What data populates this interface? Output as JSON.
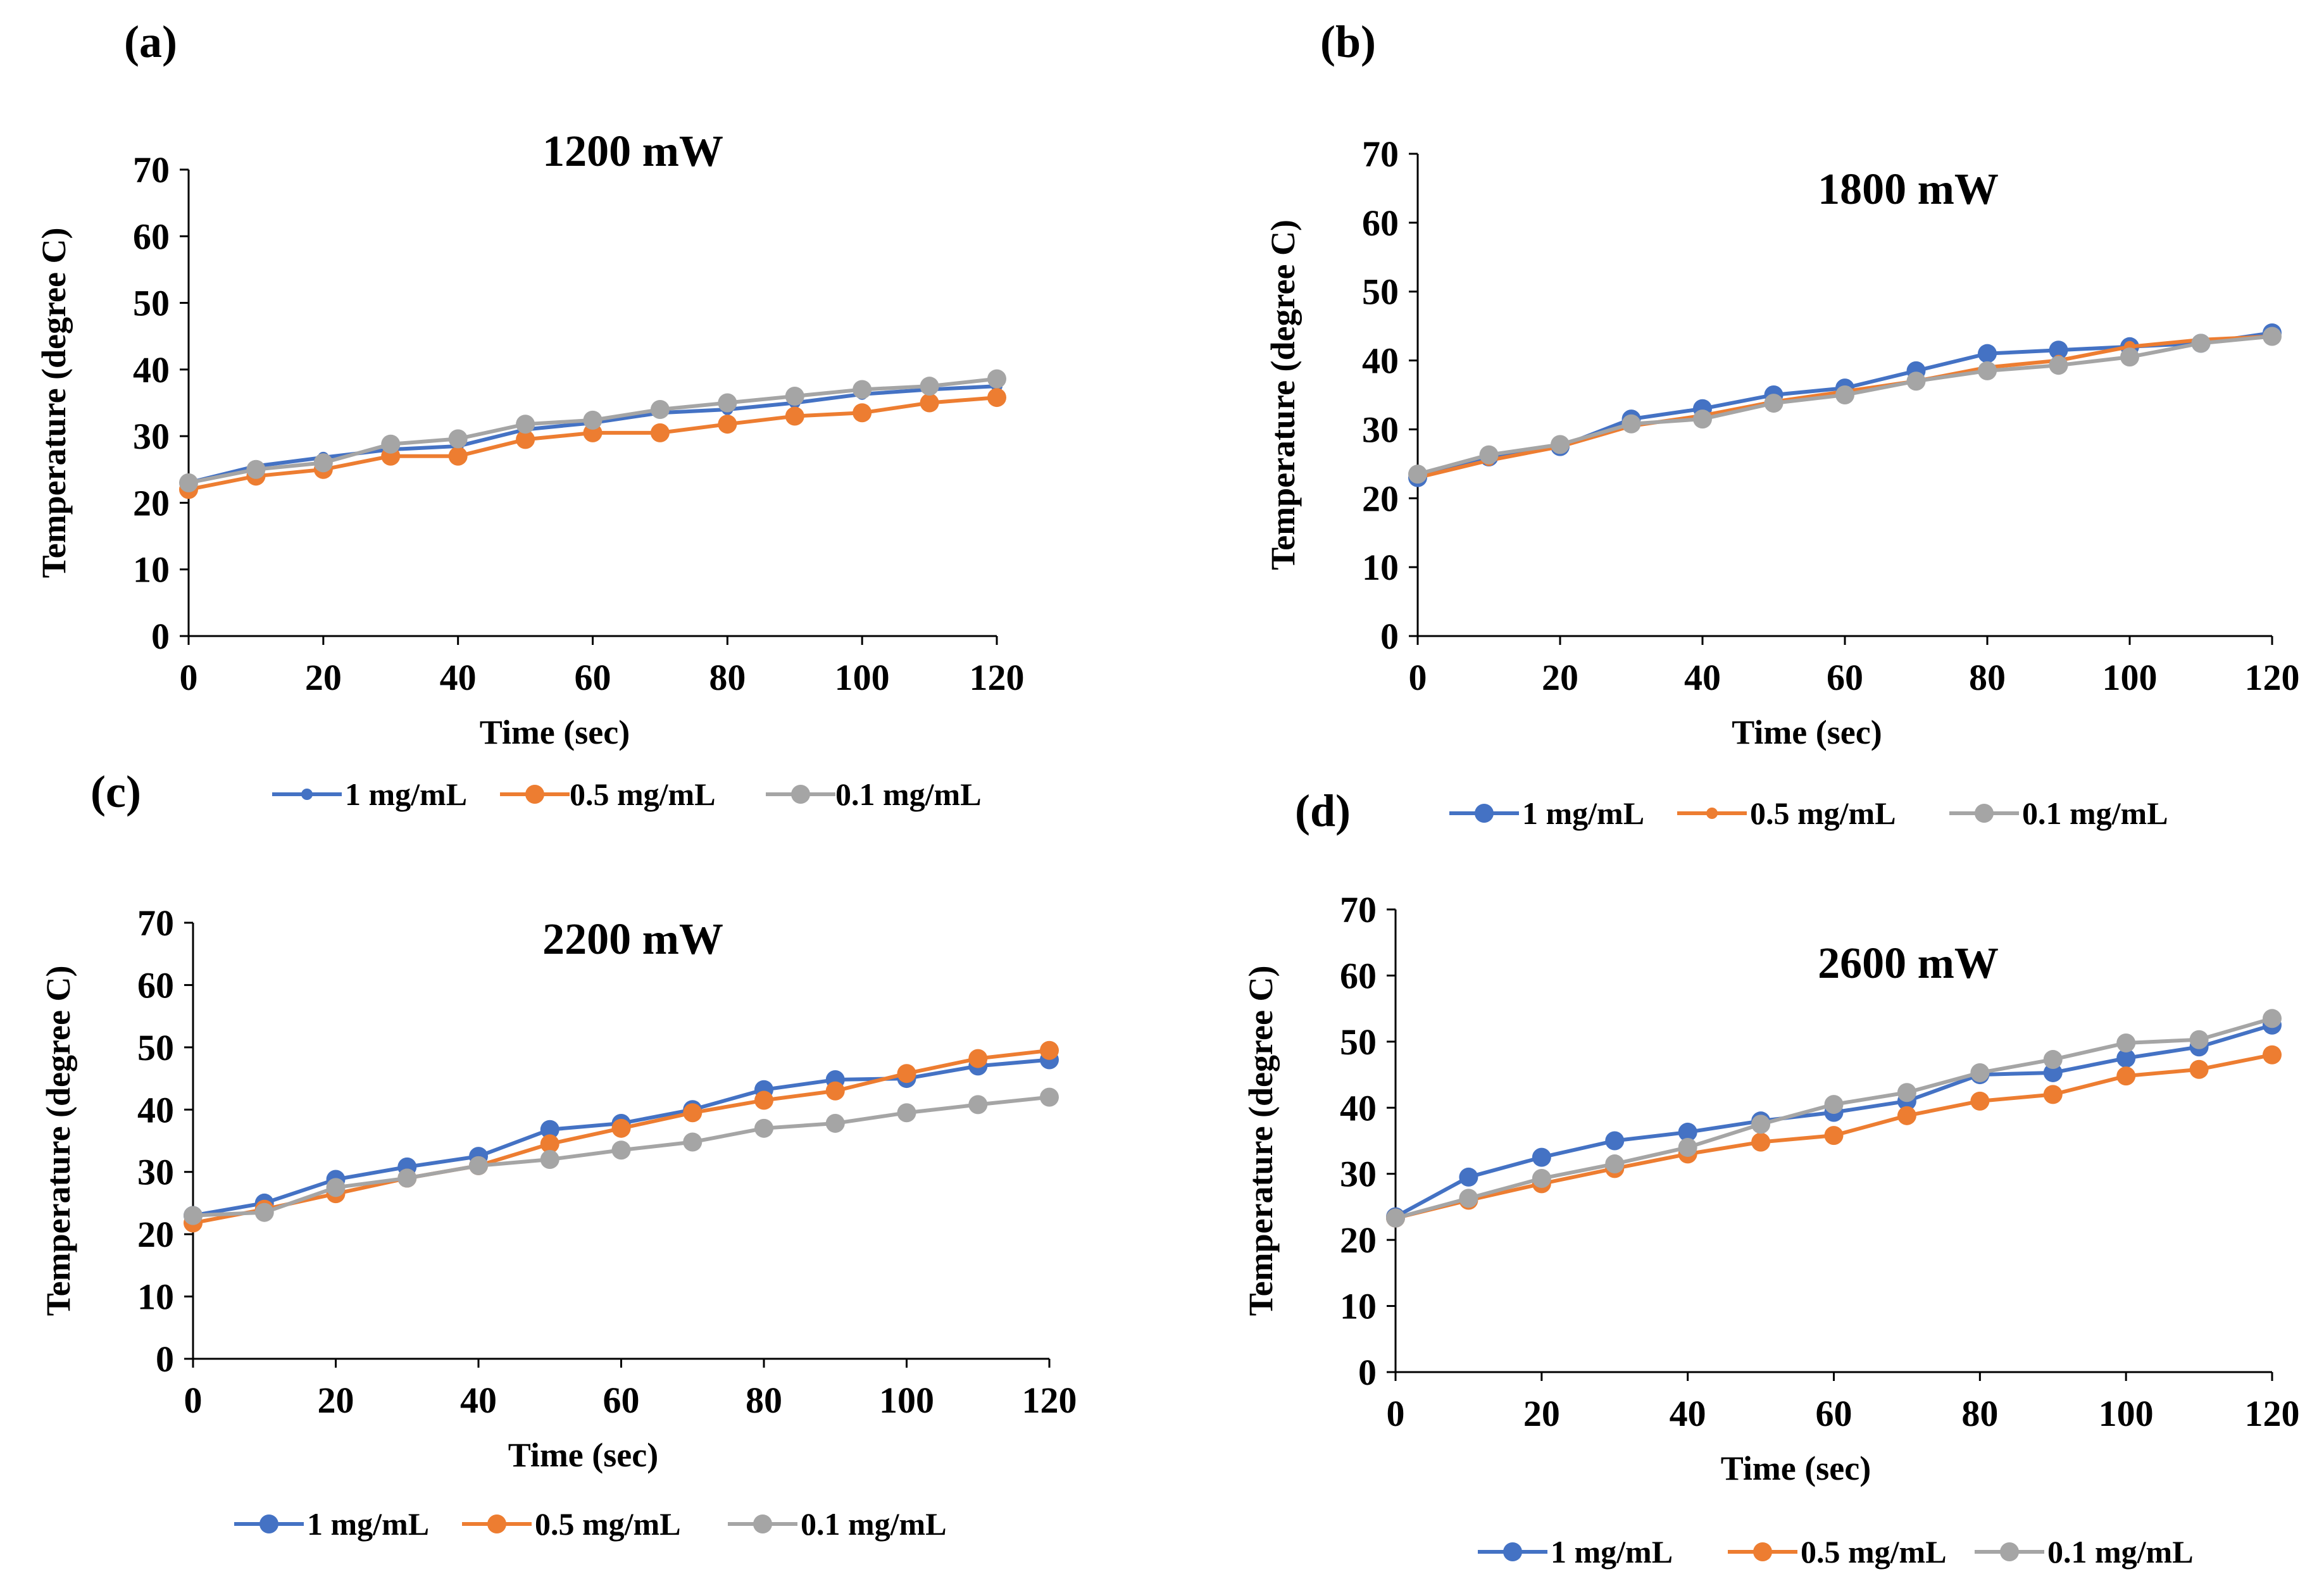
{
  "figure": {
    "colors": {
      "series_1": "#4472C4",
      "series_2": "#ED7D31",
      "series_3": "#A5A5A5",
      "axis": "#000000"
    }
  },
  "chart_data": [
    {
      "type": "line",
      "panel_label": "(a)",
      "title": "1200 mW",
      "xlabel": "Time (sec)",
      "ylabel": "Temperature (degree C)",
      "xlim": [
        0,
        120
      ],
      "ylim": [
        0,
        70
      ],
      "x_ticks": [
        0,
        20,
        40,
        60,
        80,
        100,
        120
      ],
      "y_ticks": [
        0,
        10,
        20,
        30,
        40,
        50,
        60,
        70
      ],
      "grid": false,
      "legend_position": "bottom",
      "x": [
        0,
        10,
        20,
        30,
        40,
        50,
        60,
        70,
        80,
        90,
        100,
        110,
        120
      ],
      "series": [
        {
          "name": "1 mg/mL",
          "marker": "small",
          "values": [
            23,
            25.5,
            26.8,
            28,
            28.5,
            31,
            32,
            33.5,
            34,
            35,
            36.3,
            37,
            37.5
          ]
        },
        {
          "name": "0.5 mg/mL",
          "marker": "large",
          "values": [
            22,
            24,
            25,
            27,
            27,
            29.5,
            30.5,
            30.5,
            31.8,
            33,
            33.5,
            35,
            35.8
          ]
        },
        {
          "name": "0.1 mg/mL",
          "marker": "large",
          "values": [
            23,
            25,
            26,
            28.8,
            29.6,
            31.8,
            32.4,
            34,
            35,
            36,
            37,
            37.5,
            38.6
          ]
        }
      ]
    },
    {
      "type": "line",
      "panel_label": "(b)",
      "title": "1800 mW",
      "xlabel": "Time (sec)",
      "ylabel": "Temperature (degree C)",
      "xlim": [
        0,
        120
      ],
      "ylim": [
        0,
        70
      ],
      "x_ticks": [
        0,
        20,
        40,
        60,
        80,
        100,
        120
      ],
      "y_ticks": [
        0,
        10,
        20,
        30,
        40,
        50,
        60,
        70
      ],
      "grid": false,
      "legend_position": "bottom",
      "x": [
        0,
        10,
        20,
        30,
        40,
        50,
        60,
        70,
        80,
        90,
        100,
        110,
        120
      ],
      "series": [
        {
          "name": "1 mg/mL",
          "marker": "large",
          "values": [
            23,
            26,
            27.5,
            31.5,
            33,
            35,
            36,
            38.5,
            41,
            41.5,
            42,
            42.5,
            44
          ]
        },
        {
          "name": "0.5 mg/mL",
          "marker": "small",
          "values": [
            23,
            25.5,
            27.5,
            30.5,
            32,
            34,
            35.5,
            37,
            39,
            40,
            42,
            43,
            43.5
          ]
        },
        {
          "name": "0.1 mg/mL",
          "marker": "large",
          "values": [
            23.5,
            26.3,
            27.8,
            30.8,
            31.5,
            33.8,
            35,
            37,
            38.5,
            39.3,
            40.5,
            42.5,
            43.5
          ]
        }
      ]
    },
    {
      "type": "line",
      "panel_label": "(c)",
      "title": "2200 mW",
      "xlabel": "Time (sec)",
      "ylabel": "Temperature (degree C)",
      "xlim": [
        0,
        120
      ],
      "ylim": [
        0,
        70
      ],
      "x_ticks": [
        0,
        20,
        40,
        60,
        80,
        100,
        120
      ],
      "y_ticks": [
        0,
        10,
        20,
        30,
        40,
        50,
        60,
        70
      ],
      "grid": false,
      "legend_position": "bottom",
      "x": [
        0,
        10,
        20,
        30,
        40,
        50,
        60,
        70,
        80,
        90,
        100,
        110,
        120
      ],
      "series": [
        {
          "name": "1 mg/mL",
          "marker": "large",
          "values": [
            23,
            25,
            28.8,
            30.8,
            32.5,
            36.8,
            37.8,
            40,
            43.2,
            44.8,
            45,
            47,
            48
          ]
        },
        {
          "name": "0.5 mg/mL",
          "marker": "large",
          "values": [
            21.8,
            24,
            26.5,
            29,
            31,
            34.5,
            37,
            39.5,
            41.5,
            43,
            45.8,
            48.2,
            49.5
          ]
        },
        {
          "name": "0.1 mg/mL",
          "marker": "large",
          "values": [
            23,
            23.5,
            27.5,
            29,
            31,
            32,
            33.5,
            34.8,
            37,
            37.8,
            39.5,
            40.8,
            42
          ]
        }
      ]
    },
    {
      "type": "line",
      "panel_label": "(d)",
      "title": "2600 mW",
      "xlabel": "Time (sec)",
      "ylabel": "Temperature (degree C)",
      "xlim": [
        0,
        120
      ],
      "ylim": [
        0,
        70
      ],
      "x_ticks": [
        0,
        20,
        40,
        60,
        80,
        100,
        120
      ],
      "y_ticks": [
        0,
        10,
        20,
        30,
        40,
        50,
        60,
        70
      ],
      "grid": false,
      "legend_position": "bottom",
      "x": [
        0,
        10,
        20,
        30,
        40,
        50,
        60,
        70,
        80,
        90,
        100,
        110,
        120
      ],
      "series": [
        {
          "name": "1 mg/mL",
          "marker": "large",
          "values": [
            23.5,
            29.5,
            32.5,
            35,
            36.3,
            38,
            39.3,
            41,
            45,
            45.3,
            47.5,
            49.2,
            52.5
          ]
        },
        {
          "name": "0.5 mg/mL",
          "marker": "large",
          "values": [
            23.3,
            26,
            28.5,
            30.8,
            33,
            34.8,
            35.8,
            38.8,
            41,
            42,
            44.8,
            45.8,
            48
          ]
        },
        {
          "name": "0.1 mg/mL",
          "marker": "large",
          "values": [
            23.3,
            26.3,
            29.3,
            31.5,
            34,
            37.5,
            40.5,
            42.3,
            45.3,
            47.3,
            49.8,
            50.3,
            53.5
          ]
        }
      ]
    }
  ]
}
